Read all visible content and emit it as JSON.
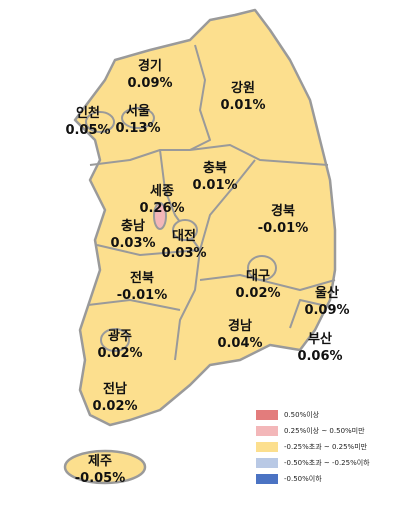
{
  "regions": [
    {
      "name": "경기",
      "value": "0.09%"
    },
    {
      "name": "인천",
      "value": "0.05%"
    },
    {
      "name": "서울",
      "value": "0.13%"
    },
    {
      "name": "강원",
      "value": "0.01%"
    },
    {
      "name": "충북",
      "value": "0.01%"
    },
    {
      "name": "세종",
      "value": "0.26%"
    },
    {
      "name": "충남",
      "value": "0.03%"
    },
    {
      "name": "대전",
      "value": "0.03%"
    },
    {
      "name": "경북",
      "value": "-0.01%"
    },
    {
      "name": "대구",
      "value": "0.02%"
    },
    {
      "name": "전북",
      "value": "-0.01%"
    },
    {
      "name": "울산",
      "value": "0.09%"
    },
    {
      "name": "광주",
      "value": "0.02%"
    },
    {
      "name": "경남",
      "value": "0.04%"
    },
    {
      "name": "부산",
      "value": "0.06%"
    },
    {
      "name": "전남",
      "value": "0.02%"
    },
    {
      "name": "제주",
      "value": "-0.05%"
    }
  ],
  "legend": [
    {
      "label": "0.50%이상",
      "color": "#e37c7c"
    },
    {
      "label": "0.25%이상 ~ 0.50%미만",
      "color": "#f3b7b9"
    },
    {
      "label": "-0.25%초과 ~ 0.25%미만",
      "color": "#fcdf8e"
    },
    {
      "label": "-0.50%초과 ~ -0.25%이하",
      "color": "#b9c9e5"
    },
    {
      "label": "-0.50%이하",
      "color": "#4b73c3"
    }
  ]
}
